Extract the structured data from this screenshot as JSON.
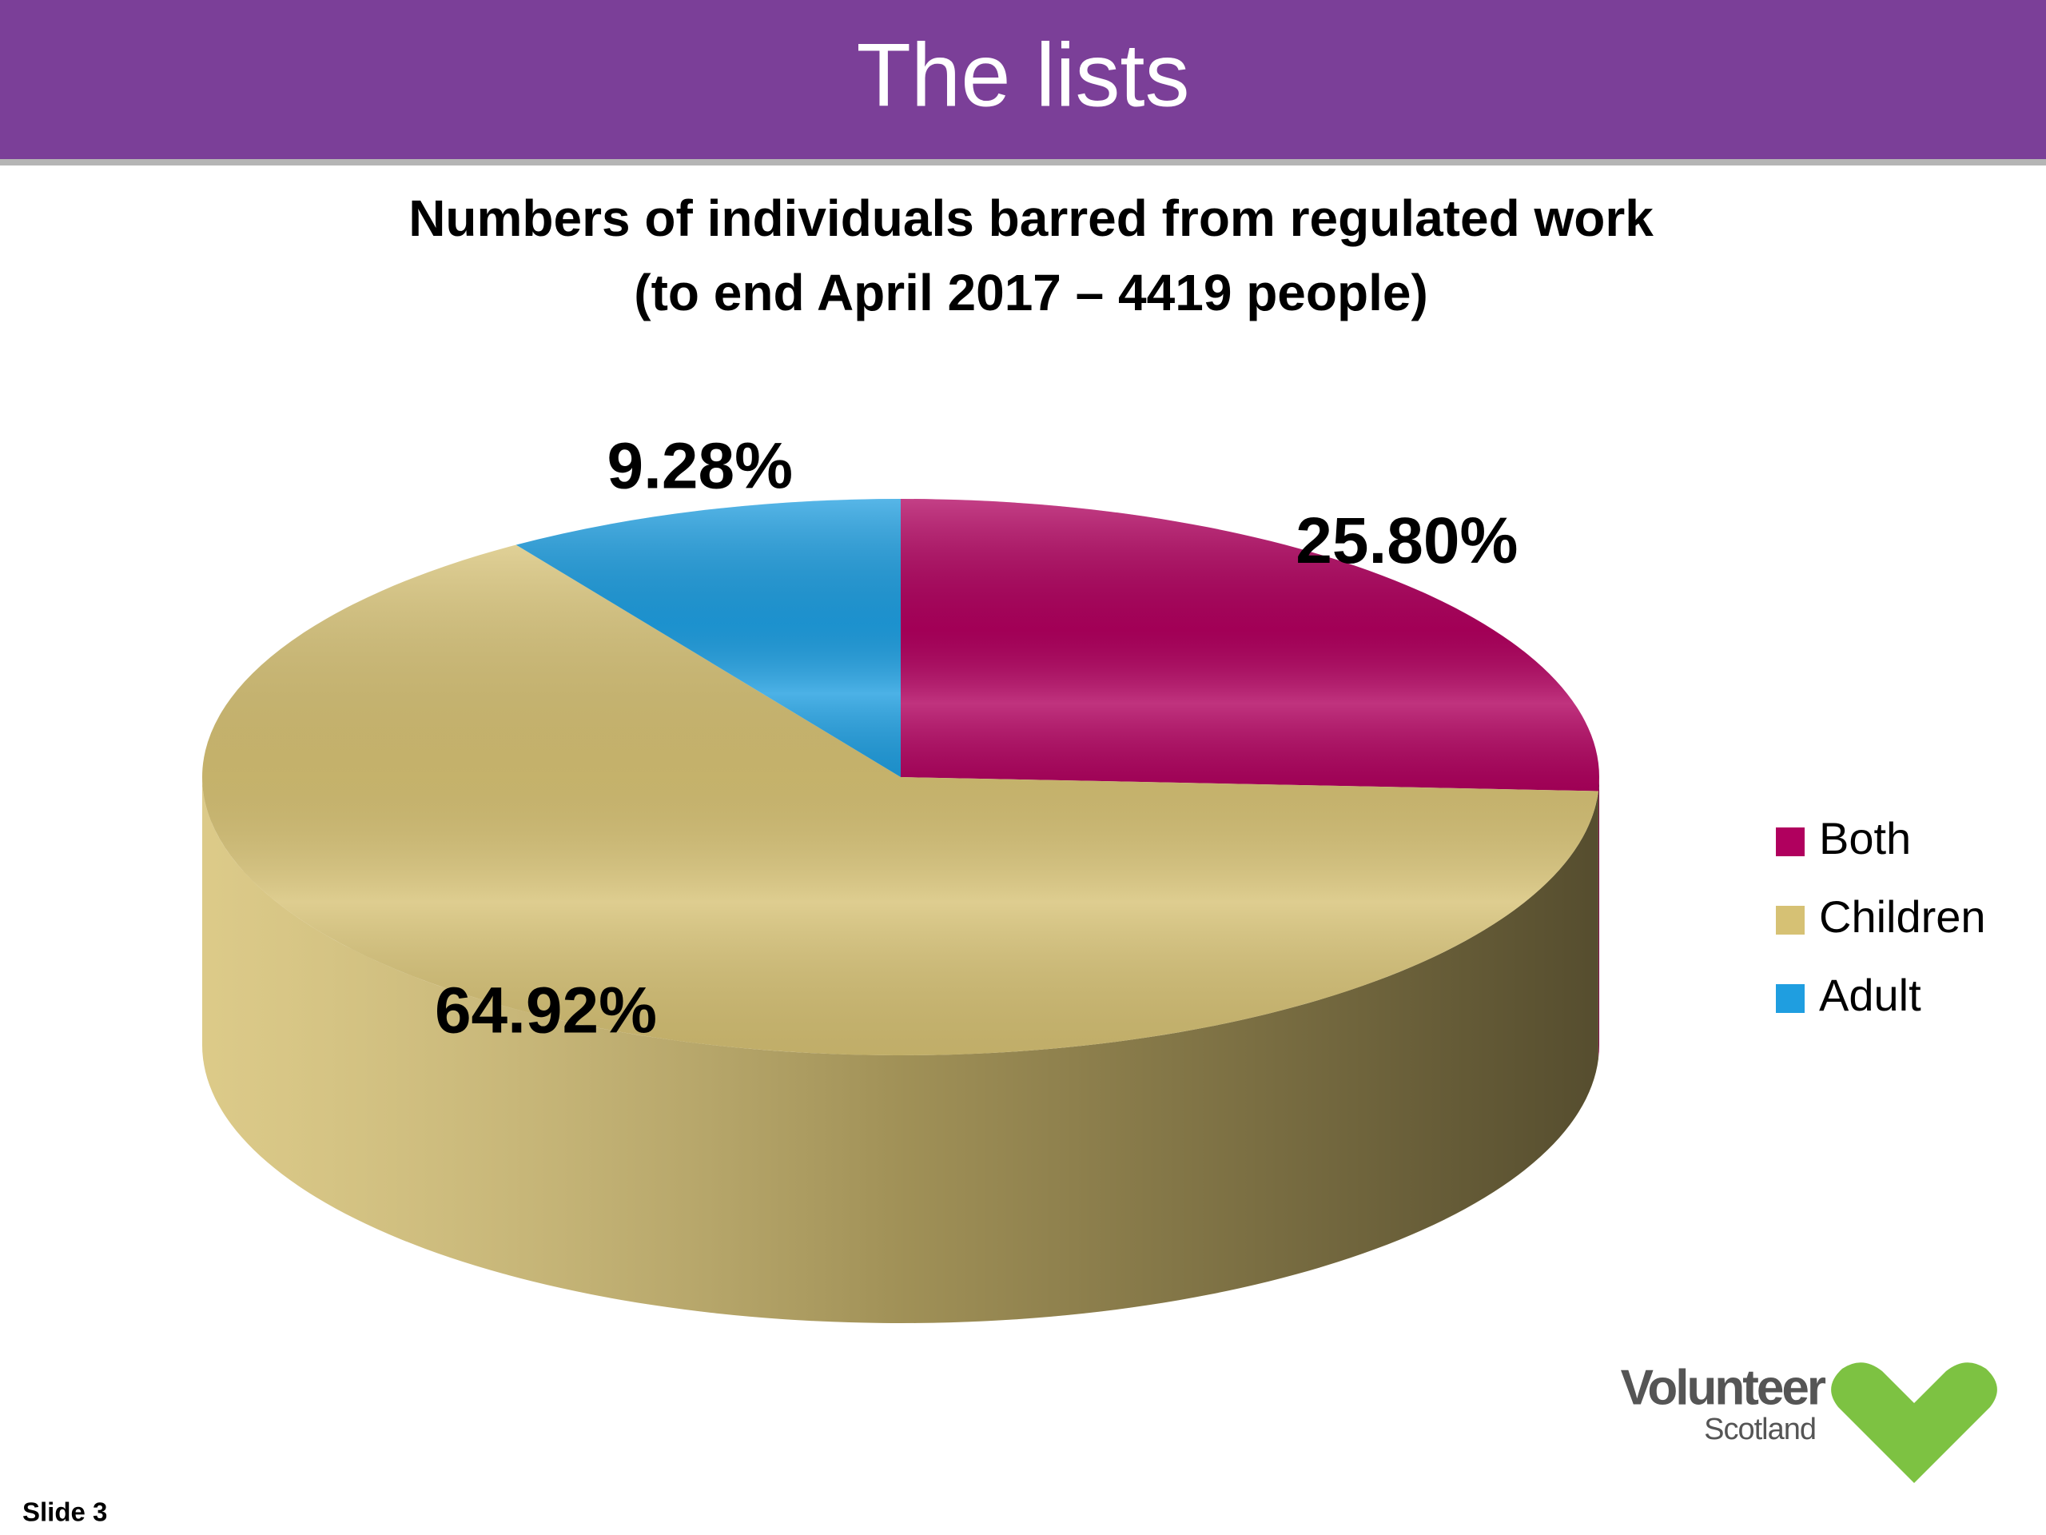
{
  "header": {
    "title": "The lists"
  },
  "chart_data": {
    "type": "pie",
    "title": "Numbers of individuals barred from regulated work",
    "subtitle": "(to end April 2017 – 4419 people)",
    "categories": [
      "Both",
      "Children",
      "Adult"
    ],
    "values": [
      25.8,
      64.92,
      9.28
    ],
    "value_labels": [
      "25.80%",
      "64.92%",
      "9.28%"
    ],
    "colors": [
      "#b0005e",
      "#d6c174",
      "#1f9ee0"
    ],
    "legend": "right"
  },
  "logo": {
    "name": "Volunteer",
    "subname": "Scotland"
  },
  "footer": {
    "slide": "Slide 3"
  }
}
